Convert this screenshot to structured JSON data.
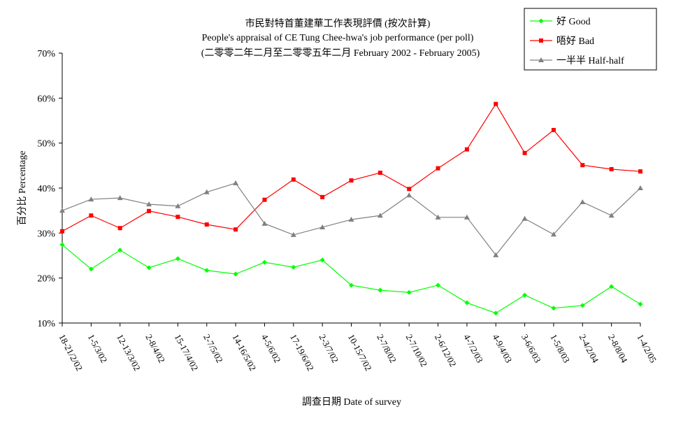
{
  "chart_data": {
    "type": "line",
    "title": "市民對特首董建華工作表現評價 (按次計算)",
    "subtitle": "People's appraisal of CE Tung Chee-hwa's job performance (per poll)",
    "subtitle2": "(二零零二年二月至二零零五年二月 February 2002 - February 2005)",
    "xlabel": "調查日期 Date of survey",
    "ylabel": "百分比 Percentage",
    "ylim": [
      10,
      70
    ],
    "yticks": [
      "10%",
      "20%",
      "30%",
      "40%",
      "50%",
      "60%",
      "70%"
    ],
    "grid": false,
    "legend_position": "top-right",
    "categories": [
      "18-21/2/02",
      "1-5/3/02",
      "12-13/3/02",
      "2-8/4/02",
      "15-17/4/02",
      "2-7/5/02",
      "14-16/5/02",
      "4-5/6/02",
      "17-19/6/02",
      "2-3/7/02",
      "10-15/7/02",
      "2-7/8/02",
      "2-7/10/02",
      "2-6/12/02",
      "4-7/2/03",
      "4-9/4/03",
      "3-6/6/03",
      "1-5/8/03",
      "2-4/2/04",
      "2-8/8/04",
      "1-4/2/05"
    ],
    "series": [
      {
        "name": "好 Good",
        "color": "#00ff00",
        "marker": "diamond",
        "values": [
          27.4,
          22.0,
          26.2,
          22.3,
          24.3,
          21.7,
          20.9,
          23.5,
          22.4,
          24.0,
          18.4,
          17.3,
          16.8,
          18.4,
          14.5,
          12.2,
          16.2,
          13.3,
          13.9,
          18.1,
          14.2
        ]
      },
      {
        "name": "唔好 Bad",
        "color": "#ff0000",
        "marker": "square",
        "values": [
          30.4,
          33.9,
          31.1,
          34.9,
          33.6,
          31.9,
          30.8,
          37.4,
          41.9,
          38.0,
          41.7,
          43.4,
          39.8,
          44.4,
          48.6,
          58.7,
          47.8,
          52.9,
          45.1,
          44.2,
          43.7
        ]
      },
      {
        "name": "一半半 Half-half",
        "color": "#808080",
        "marker": "triangle",
        "values": [
          35.0,
          37.5,
          37.8,
          36.4,
          36.0,
          39.1,
          41.1,
          32.1,
          29.6,
          31.3,
          33.0,
          33.9,
          38.4,
          33.5,
          33.5,
          25.1,
          33.2,
          29.7,
          36.9,
          33.9,
          40.0
        ]
      }
    ]
  }
}
